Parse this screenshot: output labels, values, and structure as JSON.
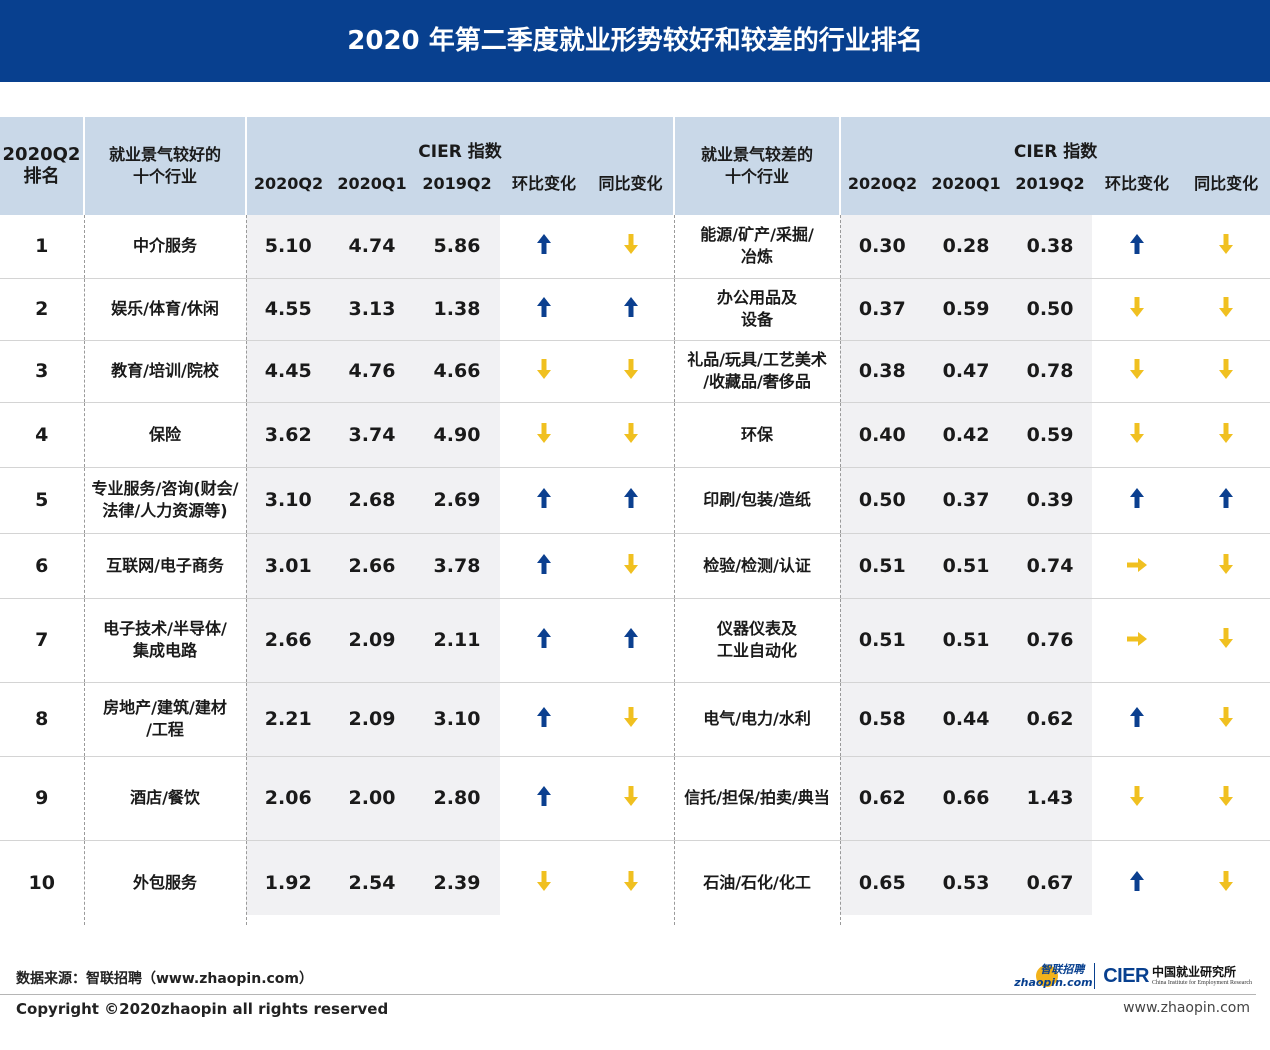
{
  "title": "2020 年第二季度就业形势较好和较差的行业排名",
  "colors": {
    "title_bg": "#08408f",
    "header_bg": "#c9d8e8",
    "band_bg": "#f1f1f3",
    "arrow_up": "#0b3f8f",
    "arrow_down": "#f0c020",
    "arrow_flat": "#f0c020"
  },
  "header": {
    "rank": "2020Q2\n排名",
    "good_name": "就业景气较好的\n十个行业",
    "bad_name": "就业景气较差的\n十个行业",
    "cier_group": "CIER 指数",
    "sub": [
      "2020Q2",
      "2020Q1",
      "2019Q2",
      "环比变化",
      "同比变化"
    ]
  },
  "rows": [
    {
      "rank": "1",
      "good": {
        "name": "中介服务",
        "q2_2020": "5.10",
        "q1_2020": "4.74",
        "q2_2019": "5.86",
        "qoq": "up",
        "yoy": "down"
      },
      "bad": {
        "name": "能源/矿产/采掘/\n冶炼",
        "q2_2020": "0.30",
        "q1_2020": "0.28",
        "q2_2019": "0.38",
        "qoq": "up",
        "yoy": "down"
      }
    },
    {
      "rank": "2",
      "good": {
        "name": "娱乐/体育/休闲",
        "q2_2020": "4.55",
        "q1_2020": "3.13",
        "q2_2019": "1.38",
        "qoq": "up",
        "yoy": "up"
      },
      "bad": {
        "name": "办公用品及\n设备",
        "q2_2020": "0.37",
        "q1_2020": "0.59",
        "q2_2019": "0.50",
        "qoq": "down",
        "yoy": "down"
      }
    },
    {
      "rank": "3",
      "good": {
        "name": "教育/培训/院校",
        "q2_2020": "4.45",
        "q1_2020": "4.76",
        "q2_2019": "4.66",
        "qoq": "down",
        "yoy": "down"
      },
      "bad": {
        "name": "礼品/玩具/工艺美术\n/收藏品/奢侈品",
        "q2_2020": "0.38",
        "q1_2020": "0.47",
        "q2_2019": "0.78",
        "qoq": "down",
        "yoy": "down"
      }
    },
    {
      "rank": "4",
      "good": {
        "name": "保险",
        "q2_2020": "3.62",
        "q1_2020": "3.74",
        "q2_2019": "4.90",
        "qoq": "down",
        "yoy": "down"
      },
      "bad": {
        "name": "环保",
        "q2_2020": "0.40",
        "q1_2020": "0.42",
        "q2_2019": "0.59",
        "qoq": "down",
        "yoy": "down"
      }
    },
    {
      "rank": "5",
      "good": {
        "name": "专业服务/咨询(财会/\n法律/人力资源等)",
        "q2_2020": "3.10",
        "q1_2020": "2.68",
        "q2_2019": "2.69",
        "qoq": "up",
        "yoy": "up"
      },
      "bad": {
        "name": "印刷/包装/造纸",
        "q2_2020": "0.50",
        "q1_2020": "0.37",
        "q2_2019": "0.39",
        "qoq": "up",
        "yoy": "up"
      }
    },
    {
      "rank": "6",
      "good": {
        "name": "互联网/电子商务",
        "q2_2020": "3.01",
        "q1_2020": "2.66",
        "q2_2019": "3.78",
        "qoq": "up",
        "yoy": "down"
      },
      "bad": {
        "name": "检验/检测/认证",
        "q2_2020": "0.51",
        "q1_2020": "0.51",
        "q2_2019": "0.74",
        "qoq": "flat",
        "yoy": "down"
      }
    },
    {
      "rank": "7",
      "good": {
        "name": "电子技术/半导体/\n集成电路",
        "q2_2020": "2.66",
        "q1_2020": "2.09",
        "q2_2019": "2.11",
        "qoq": "up",
        "yoy": "up"
      },
      "bad": {
        "name": "仪器仪表及\n工业自动化",
        "q2_2020": "0.51",
        "q1_2020": "0.51",
        "q2_2019": "0.76",
        "qoq": "flat",
        "yoy": "down"
      }
    },
    {
      "rank": "8",
      "good": {
        "name": "房地产/建筑/建材\n/工程",
        "q2_2020": "2.21",
        "q1_2020": "2.09",
        "q2_2019": "3.10",
        "qoq": "up",
        "yoy": "down"
      },
      "bad": {
        "name": "电气/电力/水利",
        "q2_2020": "0.58",
        "q1_2020": "0.44",
        "q2_2019": "0.62",
        "qoq": "up",
        "yoy": "down"
      }
    },
    {
      "rank": "9",
      "good": {
        "name": "酒店/餐饮",
        "q2_2020": "2.06",
        "q1_2020": "2.00",
        "q2_2019": "2.80",
        "qoq": "up",
        "yoy": "down"
      },
      "bad": {
        "name": "信托/担保/拍卖/典当",
        "q2_2020": "0.62",
        "q1_2020": "0.66",
        "q2_2019": "1.43",
        "qoq": "down",
        "yoy": "down"
      }
    },
    {
      "rank": "10",
      "good": {
        "name": "外包服务",
        "q2_2020": "1.92",
        "q1_2020": "2.54",
        "q2_2019": "2.39",
        "qoq": "down",
        "yoy": "down"
      },
      "bad": {
        "name": "石油/石化/化工",
        "q2_2020": "0.65",
        "q1_2020": "0.53",
        "q2_2019": "0.67",
        "qoq": "up",
        "yoy": "down"
      }
    }
  ],
  "footer": {
    "source": "数据来源：智联招聘（www.zhaopin.com）",
    "copyright": "Copyright ©2020zhaopin all rights reserved",
    "website": "www.zhaopin.com",
    "logo_zhaopin_cn": "智联招聘",
    "logo_zhaopin_en": "zhaopin.com",
    "logo_cier": "CIER",
    "logo_cier_cn": "中国就业研究所",
    "logo_cier_en": "China Institute for Employment Research"
  }
}
